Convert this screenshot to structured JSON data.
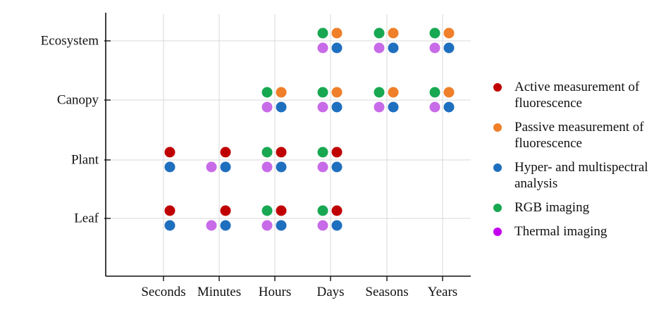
{
  "chart_data": {
    "type": "scatter",
    "x_categories": [
      "Seconds",
      "Minutes",
      "Hours",
      "Days",
      "Seasons",
      "Years"
    ],
    "y_categories": [
      "Leaf",
      "Plant",
      "Canopy",
      "Ecosystem"
    ],
    "grid": true,
    "legend_placement": "right",
    "series": [
      {
        "name": "Active measurement of fluorescence",
        "color": "#c00000",
        "marker_slot": "top-right",
        "points": [
          {
            "x": "Seconds",
            "y": "Leaf"
          },
          {
            "x": "Minutes",
            "y": "Leaf"
          },
          {
            "x": "Hours",
            "y": "Leaf"
          },
          {
            "x": "Days",
            "y": "Leaf"
          },
          {
            "x": "Seconds",
            "y": "Plant"
          },
          {
            "x": "Minutes",
            "y": "Plant"
          },
          {
            "x": "Hours",
            "y": "Plant"
          },
          {
            "x": "Days",
            "y": "Plant"
          }
        ]
      },
      {
        "name": "Passive measurement of fluorescence",
        "color": "#f07f2a",
        "marker_slot": "top-right",
        "points": [
          {
            "x": "Hours",
            "y": "Canopy"
          },
          {
            "x": "Days",
            "y": "Canopy"
          },
          {
            "x": "Seasons",
            "y": "Canopy"
          },
          {
            "x": "Years",
            "y": "Canopy"
          },
          {
            "x": "Days",
            "y": "Ecosystem"
          },
          {
            "x": "Seasons",
            "y": "Ecosystem"
          },
          {
            "x": "Years",
            "y": "Ecosystem"
          }
        ]
      },
      {
        "name": "Hyper- and multispectral analysis",
        "color": "#1f6fbf",
        "marker_slot": "bottom-right",
        "points": [
          {
            "x": "Seconds",
            "y": "Leaf"
          },
          {
            "x": "Minutes",
            "y": "Leaf"
          },
          {
            "x": "Hours",
            "y": "Leaf"
          },
          {
            "x": "Days",
            "y": "Leaf"
          },
          {
            "x": "Seconds",
            "y": "Plant"
          },
          {
            "x": "Minutes",
            "y": "Plant"
          },
          {
            "x": "Hours",
            "y": "Plant"
          },
          {
            "x": "Days",
            "y": "Plant"
          },
          {
            "x": "Hours",
            "y": "Canopy"
          },
          {
            "x": "Days",
            "y": "Canopy"
          },
          {
            "x": "Seasons",
            "y": "Canopy"
          },
          {
            "x": "Years",
            "y": "Canopy"
          },
          {
            "x": "Days",
            "y": "Ecosystem"
          },
          {
            "x": "Seasons",
            "y": "Ecosystem"
          },
          {
            "x": "Years",
            "y": "Ecosystem"
          }
        ]
      },
      {
        "name": "RGB imaging",
        "color": "#18a852",
        "marker_slot": "top-left",
        "points": [
          {
            "x": "Hours",
            "y": "Leaf"
          },
          {
            "x": "Days",
            "y": "Leaf"
          },
          {
            "x": "Hours",
            "y": "Plant"
          },
          {
            "x": "Days",
            "y": "Plant"
          },
          {
            "x": "Hours",
            "y": "Canopy"
          },
          {
            "x": "Days",
            "y": "Canopy"
          },
          {
            "x": "Seasons",
            "y": "Canopy"
          },
          {
            "x": "Years",
            "y": "Canopy"
          },
          {
            "x": "Days",
            "y": "Ecosystem"
          },
          {
            "x": "Seasons",
            "y": "Ecosystem"
          },
          {
            "x": "Years",
            "y": "Ecosystem"
          }
        ]
      },
      {
        "name": "Thermal imaging",
        "color": "#c86be8",
        "legend_color": "#c400f0",
        "marker_slot": "bottom-left",
        "points": [
          {
            "x": "Minutes",
            "y": "Leaf"
          },
          {
            "x": "Hours",
            "y": "Leaf"
          },
          {
            "x": "Days",
            "y": "Leaf"
          },
          {
            "x": "Minutes",
            "y": "Plant"
          },
          {
            "x": "Hours",
            "y": "Plant"
          },
          {
            "x": "Days",
            "y": "Plant"
          },
          {
            "x": "Hours",
            "y": "Canopy"
          },
          {
            "x": "Days",
            "y": "Canopy"
          },
          {
            "x": "Seasons",
            "y": "Canopy"
          },
          {
            "x": "Years",
            "y": "Canopy"
          },
          {
            "x": "Days",
            "y": "Ecosystem"
          },
          {
            "x": "Seasons",
            "y": "Ecosystem"
          },
          {
            "x": "Years",
            "y": "Ecosystem"
          }
        ]
      }
    ]
  }
}
